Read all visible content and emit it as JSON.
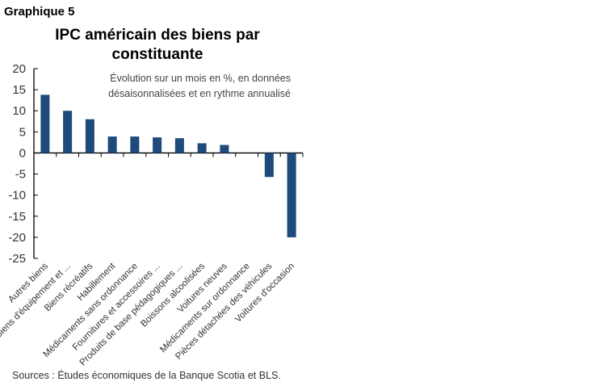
{
  "graph_label": "Graphique 5",
  "chart_data": {
    "type": "bar",
    "title": "IPC américain des biens par constituante",
    "subtitle": "Évolution sur un mois en %, en données désaisonnalisées et en rythme annualisé",
    "categories": [
      "Autres biens",
      "Biens d'équipement et ...",
      "Biens récréatifs",
      "Habillement",
      "Médicaments sans ordonnance",
      "Fournitures et accessoires ...",
      "Produits de base pédagogiques ...",
      "Boissons alcoolisées",
      "Voitures neuves",
      "Médicaments sur ordonnance",
      "Pièces détachées des véhicules",
      "Voitures d'occasion"
    ],
    "values": [
      13.8,
      10.0,
      8.0,
      3.9,
      3.9,
      3.7,
      3.5,
      2.3,
      1.9,
      0.0,
      -5.7,
      -20.0
    ],
    "ylim": [
      -25,
      20
    ],
    "yticks": [
      20,
      15,
      10,
      5,
      0,
      -5,
      -10,
      -15,
      -20,
      -25
    ],
    "grid": false,
    "bar_color": "#1f4a7c",
    "xlabel": "",
    "ylabel": ""
  },
  "source": "Sources : Études économiques de la Banque Scotia et BLS."
}
